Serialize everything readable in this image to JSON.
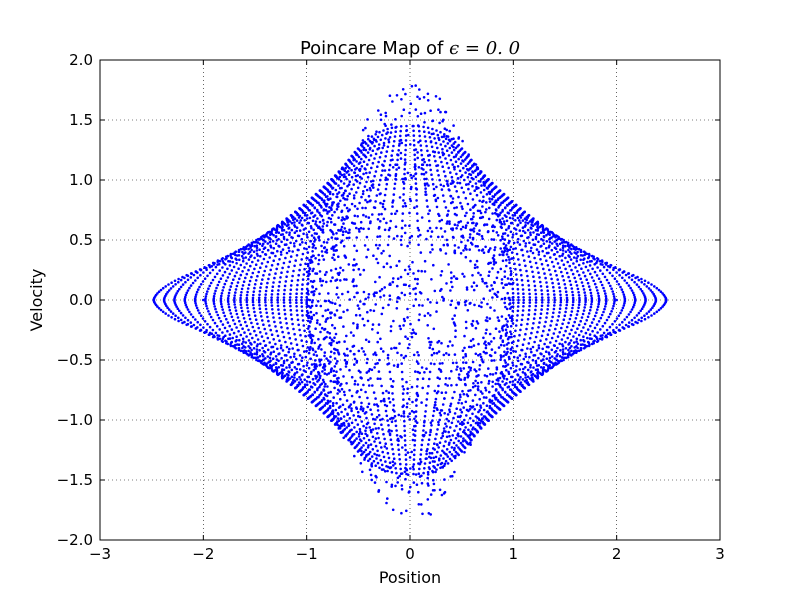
{
  "chart_data": {
    "type": "scatter",
    "title_prefix": "Poincare Map of ",
    "title_math": "ϵ = 0. 0",
    "xlabel": "Position",
    "ylabel": "Velocity",
    "xlim": [
      -3,
      3
    ],
    "ylim": [
      -2,
      2
    ],
    "xticks": [
      -3,
      -2,
      -1,
      0,
      1,
      2,
      3
    ],
    "xtick_labels": [
      "−3",
      "−2",
      "−1",
      "0",
      "1",
      "2",
      "3"
    ],
    "yticks": [
      -2.0,
      -1.5,
      -1.0,
      -0.5,
      0.0,
      0.5,
      1.0,
      1.5,
      2.0
    ],
    "ytick_labels": [
      "−2.0",
      "−1.5",
      "−1.0",
      "−0.5",
      "0.0",
      "0.5",
      "1.0",
      "1.5",
      "2.0"
    ],
    "grid": true,
    "grid_style": "dotted",
    "marker_color": "#0000ff",
    "series": [
      {
        "description_of_shape": "nested closed orbits",
        "orbit_x_amplitudes": [
          2.48,
          2.38,
          2.28,
          2.18,
          2.08,
          1.98,
          1.9,
          1.83,
          1.76,
          1.7,
          1.64,
          1.58,
          1.52,
          1.46,
          1.4,
          1.34,
          1.28,
          1.22,
          1.16,
          1.1,
          1.05,
          1.0
        ],
        "orbit_y_amplitudes": [
          0.46,
          0.53,
          0.6,
          0.66,
          0.72,
          0.78,
          0.83,
          0.88,
          0.93,
          0.97,
          1.01,
          1.05,
          1.09,
          1.13,
          1.17,
          1.21,
          1.25,
          1.29,
          1.33,
          1.37,
          1.41,
          1.45
        ],
        "chaotic_region_x_extent": [
          -1.0,
          1.0
        ],
        "chaotic_region_y_extent": [
          -1.79,
          1.79
        ],
        "island_points": [
          [
            -2.0,
            0.0
          ],
          [
            2.0,
            0.0
          ],
          [
            -0.97,
            0.0
          ],
          [
            0.97,
            0.0
          ]
        ]
      }
    ]
  }
}
